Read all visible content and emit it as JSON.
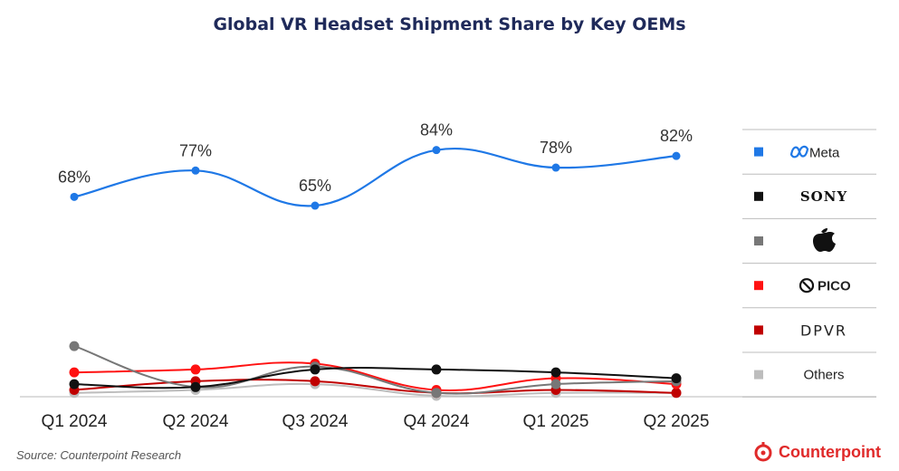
{
  "chart_data": {
    "type": "line",
    "title": "Global VR Headset Shipment Share by Key OEMs",
    "categories": [
      "Q1 2024",
      "Q2 2024",
      "Q3 2024",
      "Q4 2024",
      "Q1 2025",
      "Q2 2025"
    ],
    "ylim": [
      0,
      100
    ],
    "xlabel": "",
    "ylabel": "",
    "grid": false,
    "legend_position": "right",
    "series": [
      {
        "name": "Meta",
        "color": "#1f78e6",
        "values": [
          68,
          77,
          65,
          84,
          78,
          82
        ],
        "labels": [
          "68%",
          "77%",
          "65%",
          "84%",
          "78%",
          "82%"
        ],
        "legend_text": "Meta",
        "legend_icon": "meta-logo-icon"
      },
      {
        "name": "Sony",
        "color": "#111111",
        "values": [
          4,
          3,
          9,
          9,
          8,
          6
        ],
        "legend_text": "SONY",
        "legend_icon": ""
      },
      {
        "name": "Apple",
        "color": "#777777",
        "values": [
          17,
          3,
          10,
          1,
          4,
          5
        ],
        "legend_text": "",
        "legend_icon": "apple-logo-icon"
      },
      {
        "name": "PICO",
        "color": "#ff1111",
        "values": [
          8,
          9,
          11,
          2,
          6,
          4
        ],
        "legend_text": "PICO",
        "legend_icon": "pico-logo-icon"
      },
      {
        "name": "DPVR",
        "color": "#c00000",
        "values": [
          2,
          5,
          5,
          1,
          2,
          1
        ],
        "legend_text": "DPVR",
        "legend_icon": ""
      },
      {
        "name": "Others",
        "color": "#bdbdbd",
        "values": [
          1,
          2,
          4,
          0,
          1,
          1
        ],
        "legend_text": "Others",
        "legend_icon": ""
      }
    ]
  },
  "footer": {
    "source": "Source: Counterpoint Research",
    "brand": "Counterpoint",
    "brand_color": "#e02a2a"
  }
}
